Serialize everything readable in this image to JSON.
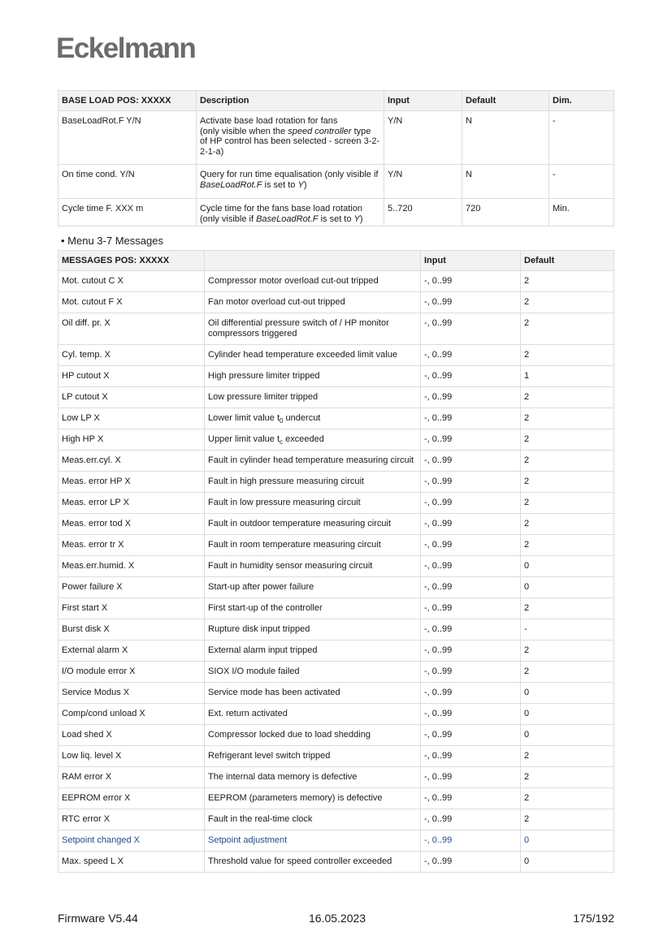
{
  "header": {
    "logo": "Eckelmann"
  },
  "base_load_table": {
    "headers": [
      "BASE LOAD POS: XXXXX",
      "Description",
      "Input",
      "Default",
      "Dim."
    ],
    "rows": [
      [
        [
          {
            "t": "BaseLoadRot.F Y/N"
          }
        ],
        [
          {
            "t": "Activate base load rotation for fans"
          },
          {
            "br": true
          },
          {
            "t": "(only visible when the "
          },
          {
            "t": "speed controller",
            "i": true
          },
          {
            "t": " type of HP control has been selected - screen 3-2-2-1-a)"
          }
        ],
        [
          {
            "t": "Y/N"
          }
        ],
        [
          {
            "t": "N"
          }
        ],
        [
          {
            "t": "-"
          }
        ]
      ],
      [
        [
          {
            "t": "On time cond. Y/N"
          }
        ],
        [
          {
            "t": "Query for run time equalisation (only visible if "
          },
          {
            "t": "BaseLoadRot.F",
            "i": true
          },
          {
            "t": " is set to "
          },
          {
            "t": "Y",
            "i": true
          },
          {
            "t": ")"
          }
        ],
        [
          {
            "t": "Y/N"
          }
        ],
        [
          {
            "t": "N"
          }
        ],
        [
          {
            "t": "-"
          }
        ]
      ],
      [
        [
          {
            "t": "Cycle time F. XXX m"
          }
        ],
        [
          {
            "t": "Cycle time for the fans base load rotation"
          },
          {
            "br": true
          },
          {
            "t": "(only visible if "
          },
          {
            "t": "BaseLoadRot.F",
            "i": true
          },
          {
            "t": " is set to "
          },
          {
            "t": "Y",
            "i": true
          },
          {
            "t": ")"
          }
        ],
        [
          {
            "t": "5..720"
          }
        ],
        [
          {
            "t": "720"
          }
        ],
        [
          {
            "t": "Min."
          }
        ]
      ]
    ]
  },
  "section_bullet": "•  Menu 3-7 Messages",
  "messages_table": {
    "headers": [
      "MESSAGES POS: XXXXX",
      "",
      "Input",
      "Default"
    ],
    "highlight_color": "#1f4e8c",
    "rows": [
      [
        [
          {
            "t": "Mot. cutout C X"
          }
        ],
        [
          {
            "t": "Compressor motor overload cut-out tripped"
          }
        ],
        [
          {
            "t": "-, 0..99"
          }
        ],
        [
          {
            "t": "2"
          }
        ]
      ],
      [
        [
          {
            "t": "Mot. cutout F X"
          }
        ],
        [
          {
            "t": "Fan motor overload cut-out tripped"
          }
        ],
        [
          {
            "t": "-, 0..99"
          }
        ],
        [
          {
            "t": "2"
          }
        ]
      ],
      [
        [
          {
            "t": "Oil diff. pr. X"
          }
        ],
        [
          {
            "t": "Oil differential pressure switch of / HP monitor compressors triggered"
          }
        ],
        [
          {
            "t": "-, 0..99"
          }
        ],
        [
          {
            "t": "2"
          }
        ]
      ],
      [
        [
          {
            "t": "Cyl. temp. X"
          }
        ],
        [
          {
            "t": "Cylinder head temperature exceeded limit value"
          }
        ],
        [
          {
            "t": "-, 0..99"
          }
        ],
        [
          {
            "t": "2"
          }
        ]
      ],
      [
        [
          {
            "t": "HP cutout X"
          }
        ],
        [
          {
            "t": "High pressure limiter tripped"
          }
        ],
        [
          {
            "t": "-, 0..99"
          }
        ],
        [
          {
            "t": "1"
          }
        ]
      ],
      [
        [
          {
            "t": "LP cutout X"
          }
        ],
        [
          {
            "t": "Low pressure limiter tripped"
          }
        ],
        [
          {
            "t": "-, 0..99"
          }
        ],
        [
          {
            "t": "2"
          }
        ]
      ],
      [
        [
          {
            "t": "Low LP X"
          }
        ],
        [
          {
            "t": "Lower limit value t"
          },
          {
            "t": "0",
            "sub": true
          },
          {
            "t": " undercut"
          }
        ],
        [
          {
            "t": "-, 0..99"
          }
        ],
        [
          {
            "t": "2"
          }
        ]
      ],
      [
        [
          {
            "t": "High HP X"
          }
        ],
        [
          {
            "t": "Upper limit value t"
          },
          {
            "t": "c",
            "sub": true
          },
          {
            "t": " exceeded"
          }
        ],
        [
          {
            "t": "-, 0..99"
          }
        ],
        [
          {
            "t": "2"
          }
        ]
      ],
      [
        [
          {
            "t": "Meas.err.cyl. X"
          }
        ],
        [
          {
            "t": "Fault in cylinder head temperature measuring circuit"
          }
        ],
        [
          {
            "t": "-, 0..99"
          }
        ],
        [
          {
            "t": "2"
          }
        ]
      ],
      [
        [
          {
            "t": "Meas. error HP X"
          }
        ],
        [
          {
            "t": "Fault in high pressure measuring circuit"
          }
        ],
        [
          {
            "t": "-, 0..99"
          }
        ],
        [
          {
            "t": "2"
          }
        ]
      ],
      [
        [
          {
            "t": "Meas. error LP X"
          }
        ],
        [
          {
            "t": "Fault in low pressure measuring circuit"
          }
        ],
        [
          {
            "t": "-, 0..99"
          }
        ],
        [
          {
            "t": "2"
          }
        ]
      ],
      [
        [
          {
            "t": "Meas. error tod X"
          }
        ],
        [
          {
            "t": "Fault in outdoor temperature measuring circuit"
          }
        ],
        [
          {
            "t": "-, 0..99"
          }
        ],
        [
          {
            "t": "2"
          }
        ]
      ],
      [
        [
          {
            "t": "Meas. error tr X"
          }
        ],
        [
          {
            "t": "Fault in room temperature measuring circuit"
          }
        ],
        [
          {
            "t": "-, 0..99"
          }
        ],
        [
          {
            "t": "2"
          }
        ]
      ],
      [
        [
          {
            "t": "Meas.err.humid. X"
          }
        ],
        [
          {
            "t": "Fault in humidity sensor measuring circuit"
          }
        ],
        [
          {
            "t": "-, 0..99"
          }
        ],
        [
          {
            "t": "0"
          }
        ]
      ],
      [
        [
          {
            "t": "Power failure X"
          }
        ],
        [
          {
            "t": "Start-up after power failure"
          }
        ],
        [
          {
            "t": "-, 0..99"
          }
        ],
        [
          {
            "t": "0"
          }
        ]
      ],
      [
        [
          {
            "t": "First start X"
          }
        ],
        [
          {
            "t": "First start-up of the controller"
          }
        ],
        [
          {
            "t": "-, 0..99"
          }
        ],
        [
          {
            "t": "2"
          }
        ]
      ],
      [
        [
          {
            "t": "Burst disk X"
          }
        ],
        [
          {
            "t": "Rupture disk input tripped"
          }
        ],
        [
          {
            "t": "-, 0..99"
          }
        ],
        [
          {
            "t": "-"
          }
        ]
      ],
      [
        [
          {
            "t": "External alarm X"
          }
        ],
        [
          {
            "t": "External alarm input tripped"
          }
        ],
        [
          {
            "t": "-, 0..99"
          }
        ],
        [
          {
            "t": "2"
          }
        ]
      ],
      [
        [
          {
            "t": "I/O module error X"
          }
        ],
        [
          {
            "t": "SIOX I/O module failed"
          }
        ],
        [
          {
            "t": "-, 0..99"
          }
        ],
        [
          {
            "t": "2"
          }
        ]
      ],
      [
        [
          {
            "t": "Service Modus X"
          }
        ],
        [
          {
            "t": "Service mode has been activated"
          }
        ],
        [
          {
            "t": "-, 0..99"
          }
        ],
        [
          {
            "t": "0"
          }
        ]
      ],
      [
        [
          {
            "t": "Comp/cond unload X"
          }
        ],
        [
          {
            "t": "Ext. return activated"
          }
        ],
        [
          {
            "t": "-, 0..99"
          }
        ],
        [
          {
            "t": "0"
          }
        ]
      ],
      [
        [
          {
            "t": "Load shed X"
          }
        ],
        [
          {
            "t": "Compressor locked due to load shedding"
          }
        ],
        [
          {
            "t": "-, 0..99"
          }
        ],
        [
          {
            "t": "0"
          }
        ]
      ],
      [
        [
          {
            "t": "Low liq. level X"
          }
        ],
        [
          {
            "t": "Refrigerant level switch tripped"
          }
        ],
        [
          {
            "t": "-, 0..99"
          }
        ],
        [
          {
            "t": "2"
          }
        ]
      ],
      [
        [
          {
            "t": "RAM error X"
          }
        ],
        [
          {
            "t": "The internal data memory is defective"
          }
        ],
        [
          {
            "t": "-, 0..99"
          }
        ],
        [
          {
            "t": "2"
          }
        ]
      ],
      [
        [
          {
            "t": "EEPROM error X"
          }
        ],
        [
          {
            "t": "EEPROM (parameters memory) is defective"
          }
        ],
        [
          {
            "t": "-, 0..99"
          }
        ],
        [
          {
            "t": "2"
          }
        ]
      ],
      [
        [
          {
            "t": "RTC error X"
          }
        ],
        [
          {
            "t": "Fault in the real-time clock"
          }
        ],
        [
          {
            "t": "-, 0..99"
          }
        ],
        [
          {
            "t": "2"
          }
        ]
      ],
      [
        [
          {
            "t": "Setpoint changed X"
          }
        ],
        [
          {
            "t": "Setpoint adjustment"
          }
        ],
        [
          {
            "t": "-, 0..99"
          }
        ],
        [
          {
            "t": "0"
          }
        ]
      ],
      [
        [
          {
            "t": "Max. speed L X"
          }
        ],
        [
          {
            "t": "Threshold value for speed controller exceeded"
          }
        ],
        [
          {
            "t": "-, 0..99"
          }
        ],
        [
          {
            "t": "0"
          }
        ]
      ]
    ],
    "highlighted_row": "Setpoint changed X"
  },
  "footer": {
    "firmware": "Firmware V5.44",
    "date": "16.05.2023",
    "page": "175/192"
  }
}
